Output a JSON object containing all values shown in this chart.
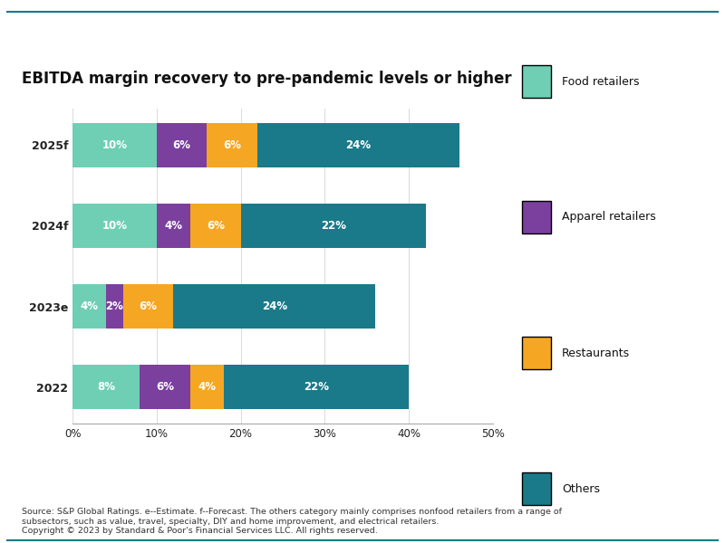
{
  "title": "EBITDA margin recovery to pre-pandemic levels or higher",
  "categories": [
    "2022",
    "2023e",
    "2024f",
    "2025f"
  ],
  "series": {
    "Food retailers": [
      8,
      4,
      10,
      10
    ],
    "Apparel retailers": [
      6,
      2,
      4,
      6
    ],
    "Restaurants": [
      4,
      6,
      6,
      6
    ],
    "Others": [
      22,
      24,
      22,
      24
    ]
  },
  "colors": {
    "Food retailers": "#6ecfb5",
    "Apparel retailers": "#7b3f9e",
    "Restaurants": "#f5a623",
    "Others": "#1a7a8a"
  },
  "xlim": [
    0,
    50
  ],
  "xticks": [
    0,
    10,
    20,
    30,
    40,
    50
  ],
  "xticklabels": [
    "0%",
    "10%",
    "20%",
    "30%",
    "40%",
    "50%"
  ],
  "bar_height": 0.55,
  "footnote_line1": "Source: S&P Global Ratings. e--Estimate. f--Forecast. The others category mainly comprises nonfood retailers from a range of",
  "footnote_line2": "subsectors, such as value, travel, specialty, DIY and home improvement, and electrical retailers.",
  "footnote_line3": "Copyright © 2023 by Standard & Poor's Financial Services LLC. All rights reserved.",
  "background_color": "#ffffff",
  "border_color": "#1a7a8a",
  "title_fontsize": 12,
  "label_fontsize": 8.5,
  "tick_fontsize": 8.5,
  "legend_fontsize": 9,
  "fig_width": 8.0,
  "fig_height": 6.0
}
